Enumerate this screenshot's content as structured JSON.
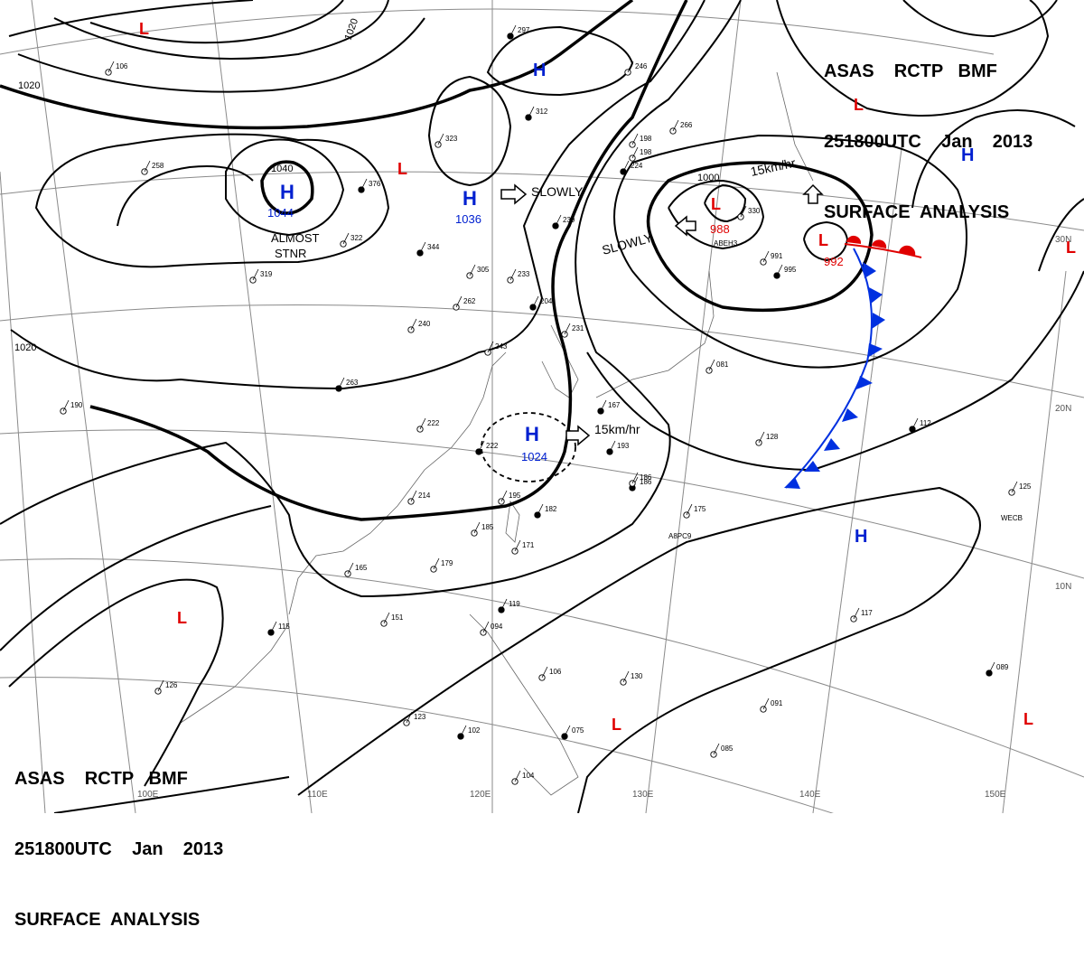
{
  "header": {
    "line1": "ASAS    RCTP   BMF",
    "line2": "251800UTC    Jan    2013",
    "line3": "SURFACE  ANALYSIS"
  },
  "colors": {
    "isobar": "#000000",
    "high": "#0020d0",
    "low": "#e00000",
    "front_cold": "#0030e0",
    "front_warm": "#e00000",
    "grid": "#888888"
  },
  "longitude_labels": [
    "100E",
    "110E",
    "120E",
    "130E",
    "140E",
    "150E"
  ],
  "latitude_labels": [
    "20N",
    "10N",
    "30N"
  ],
  "isobar_labels": [
    "1020",
    "1020",
    "1020",
    "1040",
    "1000"
  ],
  "pressure_centers": [
    {
      "type": "H",
      "value": "1044"
    },
    {
      "type": "H",
      "value": "1036"
    },
    {
      "type": "H",
      "value": "1024"
    },
    {
      "type": "H",
      "value": ""
    },
    {
      "type": "H",
      "value": ""
    },
    {
      "type": "H",
      "value": ""
    },
    {
      "type": "L",
      "value": "988"
    },
    {
      "type": "L",
      "value": "992"
    },
    {
      "type": "L",
      "value": ""
    },
    {
      "type": "L",
      "value": ""
    },
    {
      "type": "L",
      "value": ""
    },
    {
      "type": "L",
      "value": ""
    },
    {
      "type": "L",
      "value": ""
    },
    {
      "type": "L",
      "value": ""
    },
    {
      "type": "L",
      "value": ""
    }
  ],
  "motion_labels": [
    "SLOWLY",
    "SLOWLY",
    "15km/hr",
    "15km/hr",
    "ALMOST",
    "STNR"
  ],
  "station_codes": [
    "ABEH3",
    "A8PC9",
    "WECB"
  ],
  "station_values": [
    "297",
    "246",
    "106",
    "312",
    "323",
    "258",
    "376",
    "322",
    "319",
    "344",
    "305",
    "233",
    "239",
    "262",
    "240",
    "263",
    "222",
    "214",
    "222",
    "195",
    "185",
    "182",
    "171",
    "179",
    "186",
    "165",
    "151",
    "115",
    "126",
    "123",
    "102",
    "104",
    "094",
    "119",
    "106",
    "130",
    "075",
    "085",
    "091",
    "089",
    "117",
    "128",
    "112",
    "125",
    "175",
    "193",
    "198",
    "186",
    "167",
    "243",
    "231",
    "204",
    "266",
    "198",
    "224",
    "330",
    "991",
    "995",
    "081",
    "190"
  ]
}
